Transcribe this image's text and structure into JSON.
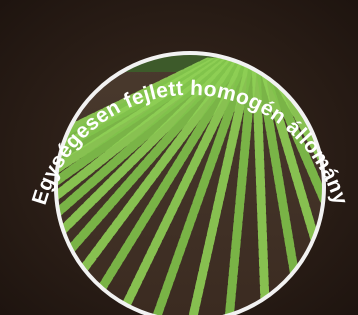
{
  "arc_text": "Egységesen fejlett homogén állomány"
}
